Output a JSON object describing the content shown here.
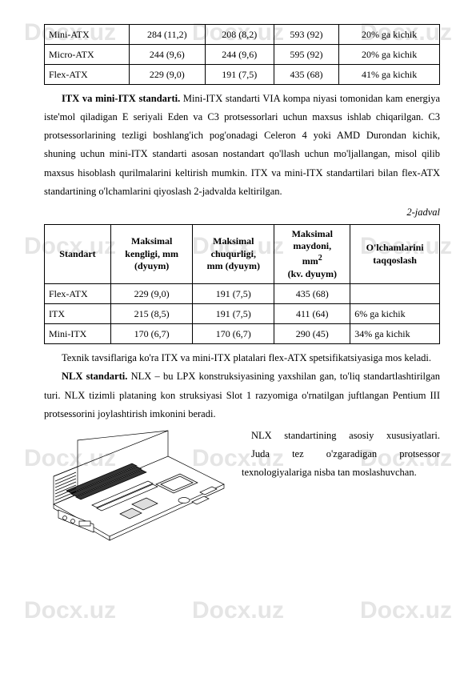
{
  "watermark": "Docx.uz",
  "table1": {
    "rows": [
      [
        "Mini-ATX",
        "284 (11,2)",
        "208 (8,2)",
        "593 (92)",
        "20% ga kichik"
      ],
      [
        "Micro-ATX",
        "244 (9,6)",
        "244 (9,6)",
        "595 (92)",
        "20% ga kichik"
      ],
      [
        "Flex-ATX",
        "229 (9,0)",
        "191 (7,5)",
        "435 (68)",
        "41% ga kichik"
      ]
    ]
  },
  "para1": {
    "lead_bold": "ITX va mini-ITX standarti.",
    "text": " Mini-ITX standarti VIA kompa niyasi tomonidan kam energiya iste'mol qiladigan E seriyali Eden va C3 protsessorlari uchun maxsus ishlab chiqarilgan. C3 protsessorlarining tezligi boshlang'ich pog'onadagi Celeron 4 yoki AMD Durondan kichik, shuning uchun mini-ITX standarti asosan nostandart qo'llash uchun mo'ljallangan, misol qilib maxsus hisoblash qurilmalarini keltirish mumkin. ITX va mini-ITX standartilari bilan flex-ATX standartining o'lchamlarini qiyoslash 2-jadvalda keltirilgan."
  },
  "caption2": "2-jadval",
  "table2": {
    "headers": [
      "Standart",
      "Maksimal kengligi, mm (dyuym)",
      "Maksimal chuqurligi, mm (dyuym)",
      "Maksimal maydoni, mm²\n(kv. dyuym)",
      "O'lchamlarini taqqoslash"
    ],
    "rows": [
      [
        "Flex-ATX",
        "229 (9,0)",
        "191 (7,5)",
        "435 (68)",
        ""
      ],
      [
        "ITX",
        "215 (8,5)",
        "191 (7,5)",
        "411 (64)",
        "6% ga kichik"
      ],
      [
        "Mini-ITX",
        "170 (6,7)",
        "170 (6,7)",
        "290 (45)",
        "34% ga kichik"
      ]
    ]
  },
  "para2": "Texnik tavsiflariga ko'ra ITX va mini-ITX platalari flex-ATX spetsifikatsiyasiga mos keladi.",
  "para3": {
    "lead_bold": "NLX standarti.",
    "text": " NLX – bu LPX konstruksiyasining yaxshilan gan, to'liq standartlashtirilgan turi. NLX tizimli plataning kon struksiyasi Slot 1 razyomiga o'rnatilgan juftlangan Pentium III protsessorini joylashtirish imkonini beradi."
  },
  "after_image": {
    "line1": "NLX standartining asosiy xususiyatlari.",
    "line2": "Juda tez o'zgaradigan protsessor texnologiyalariga nisba tan moslashuvchan."
  }
}
